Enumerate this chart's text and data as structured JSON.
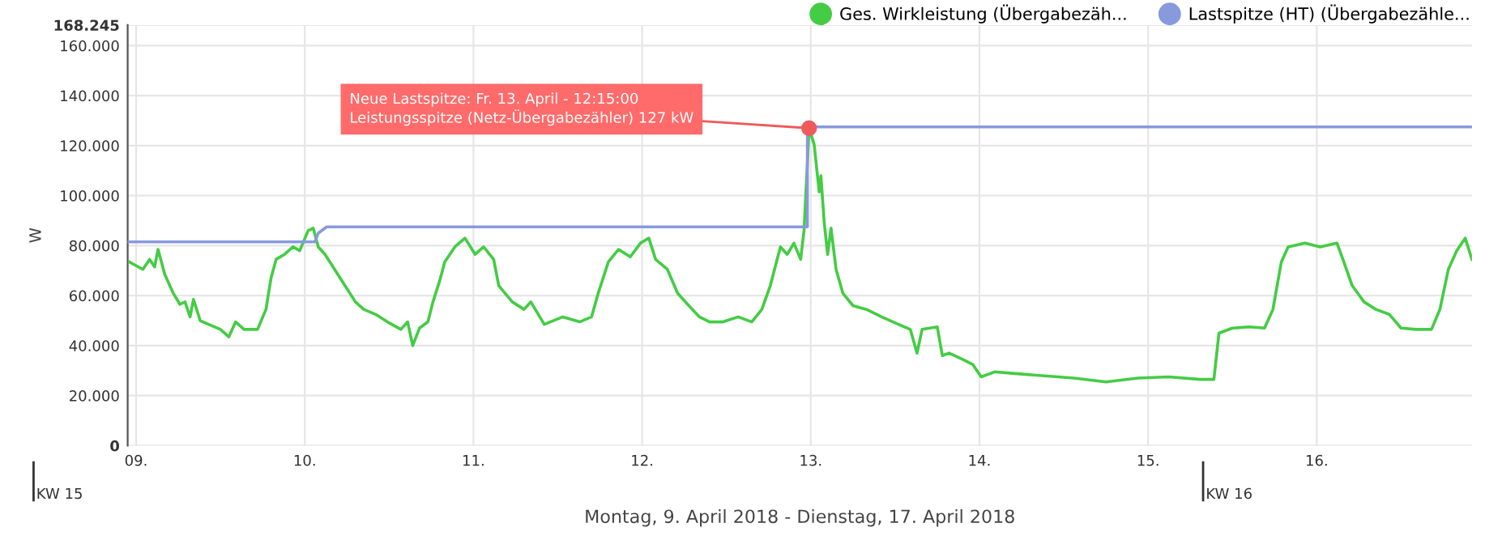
{
  "chart_data": {
    "type": "line",
    "xlabel": "Montag, 9. April 2018 - Dienstag, 17. April 2018",
    "ylabel": "W",
    "xlim": [
      8.95,
      16.92
    ],
    "xticks": [
      {
        "value": 9,
        "label": "09."
      },
      {
        "value": 10,
        "label": "10."
      },
      {
        "value": 11,
        "label": "11."
      },
      {
        "value": 12,
        "label": "12."
      },
      {
        "value": 13,
        "label": "13."
      },
      {
        "value": 14,
        "label": "14."
      },
      {
        "value": 15,
        "label": "15."
      },
      {
        "value": 16,
        "label": "16."
      }
    ],
    "ylim": [
      0,
      168245
    ],
    "yticks": [
      0,
      {
        "value": 20000,
        "label": "20.000"
      },
      {
        "value": 40000,
        "label": "40.000"
      },
      {
        "value": 60000,
        "label": "60.000"
      },
      {
        "value": 80000,
        "label": "80.000"
      },
      {
        "value": 100000,
        "label": "100.000"
      },
      {
        "value": 120000,
        "label": "120.000"
      },
      {
        "value": 140000,
        "label": "140.000"
      },
      {
        "value": 160000,
        "label": "160.000"
      },
      {
        "value": 168245,
        "label": "168.245"
      }
    ],
    "grid": true,
    "legend": "top right",
    "marker": "none",
    "line_style": "solid",
    "series": [
      {
        "name": "Ges. Wirkleistung (Übergabezäh...",
        "color": "#44cc44",
        "x": [
          8.96,
          9.04,
          9.08,
          9.11,
          9.13,
          9.17,
          9.22,
          9.26,
          9.29,
          9.32,
          9.34,
          9.38,
          9.43,
          9.5,
          9.55,
          9.59,
          9.64,
          9.72,
          9.77,
          9.8,
          9.83,
          9.88,
          9.93,
          9.97,
          10.02,
          10.05,
          10.08,
          10.12,
          10.21,
          10.3,
          10.35,
          10.42,
          10.49,
          10.57,
          10.61,
          10.64,
          10.68,
          10.73,
          10.76,
          10.8,
          10.83,
          10.89,
          10.95,
          11.01,
          11.06,
          11.12,
          11.15,
          11.23,
          11.3,
          11.34,
          11.42,
          11.53,
          11.63,
          11.7,
          11.74,
          11.8,
          11.86,
          11.93,
          11.99,
          12.04,
          12.08,
          12.15,
          12.21,
          12.27,
          12.34,
          12.4,
          12.48,
          12.57,
          12.65,
          12.71,
          12.76,
          12.82,
          12.86,
          12.9,
          12.94,
          12.96,
          12.99,
          13.02,
          13.05,
          13.06,
          13.08,
          13.1,
          13.12,
          13.15,
          13.19,
          13.25,
          13.33,
          13.42,
          13.52,
          13.59,
          13.63,
          13.66,
          13.75,
          13.78,
          13.82,
          13.9,
          13.96,
          14.01,
          14.09,
          14.18,
          14.37,
          14.56,
          14.75,
          14.94,
          15.12,
          15.31,
          15.39,
          15.42,
          15.5,
          15.6,
          15.69,
          15.74,
          15.79,
          15.83,
          15.93,
          16.02,
          16.12,
          16.16,
          16.21,
          16.28,
          16.35,
          16.43,
          16.5,
          16.59,
          16.68,
          16.73,
          16.78,
          16.83,
          16.88,
          16.92
        ],
        "values": [
          73500,
          70500,
          74500,
          71500,
          78500,
          68500,
          61000,
          56500,
          57500,
          51500,
          58500,
          50000,
          48500,
          46500,
          43500,
          49500,
          46500,
          46500,
          54500,
          67000,
          74500,
          76500,
          79500,
          78000,
          86000,
          87000,
          79500,
          76500,
          67000,
          57500,
          54500,
          52500,
          49500,
          46500,
          49500,
          40000,
          47000,
          49500,
          57500,
          66000,
          73500,
          79500,
          83000,
          76500,
          79500,
          74500,
          64000,
          57500,
          54500,
          57500,
          48500,
          51500,
          49500,
          51500,
          61000,
          73500,
          78500,
          75500,
          81000,
          83000,
          74500,
          70500,
          61000,
          56500,
          51500,
          49500,
          49500,
          51500,
          49500,
          54500,
          64000,
          79500,
          76500,
          81000,
          74500,
          86000,
          127000,
          120500,
          101500,
          108000,
          89000,
          76500,
          87000,
          70500,
          61000,
          56000,
          54500,
          51500,
          48500,
          46500,
          37000,
          46500,
          47500,
          36000,
          37000,
          34500,
          32500,
          27500,
          29500,
          29000,
          28000,
          27000,
          25500,
          27000,
          27500,
          26500,
          26500,
          45000,
          47000,
          47500,
          47000,
          54500,
          73500,
          79500,
          81000,
          79500,
          81000,
          73500,
          64000,
          57500,
          54500,
          52500,
          47000,
          46500,
          46500,
          54500,
          70500,
          78000,
          83000,
          74500
        ]
      },
      {
        "name": "Lastspitze (HT) (Übergabezähle...",
        "color": "#8899dd",
        "x": [
          8.95,
          10.06,
          10.08,
          10.13,
          12.98,
          12.98,
          16.92
        ],
        "values": [
          81500,
          81500,
          85000,
          87500,
          87500,
          127500,
          127500
        ]
      }
    ],
    "annotations": [
      {
        "text": "Neue Lastspitze: Fr. 13. April - 12:15:00\nLeistungsspitze (Netz-Übergabezähler) 127 kW",
        "x": 12.99,
        "y": 127000
      },
      "KW 15",
      "KW 16"
    ]
  }
}
